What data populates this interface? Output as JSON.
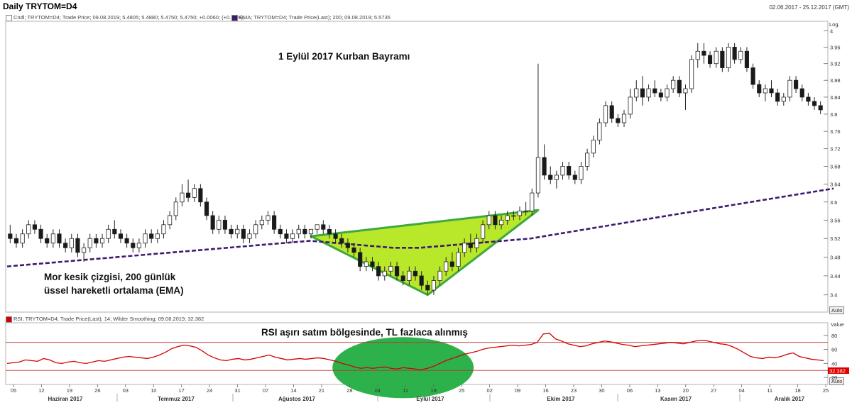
{
  "header": {
    "title": "Daily TRYTOM=D4",
    "date_range": "02.06.2017 - 25.12.2017 (GMT)",
    "legend_main": "Cndl; TRYTOM=D4; Trade Price; 09.08.2019; 5.4805; 5.4880; 5.4750; 5.4750; +0.0060; (+0.11%);",
    "legend_ema": "EMA; TRYTOM=D4; Trade Price(Last); 200; 09.08.2019; 5.5735",
    "legend_rsi": "RSI; TRYTOM=D4; Trade Price(Last); 14; Wilder Smoothing; 09.08.2019; 32.382"
  },
  "axis": {
    "price_scale_label": "Log.",
    "rsi_scale_label": "Value",
    "auto_label": "Auto",
    "rsi_last_value": "32.382"
  },
  "annotations": {
    "kurban": "1 Eylül 2017 Kurban Bayramı",
    "ema_line1": "Mor kesik çizgisi, 200 günlük",
    "ema_line2": "üssel hareketli ortalama (EMA)",
    "rsi_note": "RSI aşırı satım bölgesinde, TL fazlaca alınmış"
  },
  "colors": {
    "ema": "#3d1b6e",
    "triangle_fill": "#b5e61d",
    "triangle_stroke": "#3fa83f",
    "ellipse_fill": "#2db14a",
    "rsi_line": "#d40000",
    "rsi_band": "#c03030"
  },
  "chart_data": [
    {
      "type": "candlestick",
      "scale": "log",
      "ylim": [
        3.37,
        4.02
      ],
      "y_ticks": [
        3.4,
        3.44,
        3.48,
        3.52,
        3.56,
        3.6,
        3.64,
        3.68,
        3.72,
        3.76,
        3.8,
        3.84,
        3.88,
        3.92,
        3.96,
        4
      ],
      "x_ticks": [
        "05",
        "12",
        "19",
        "26",
        "03",
        "10",
        "17",
        "24",
        "31",
        "07",
        "14",
        "21",
        "28",
        "04",
        "11",
        "18",
        "25",
        "02",
        "09",
        "16",
        "23",
        "30",
        "06",
        "13",
        "20",
        "27",
        "04",
        "11",
        "18",
        "25"
      ],
      "x_months": [
        "Haziran 2017",
        "Temmuz 2017",
        "Ağustos 2017",
        "Eylül 2017",
        "Ekim 2017",
        "Kasım 2017",
        "Aralık 2017"
      ],
      "candles": [
        [
          3.53,
          3.55,
          3.51,
          3.52
        ],
        [
          3.52,
          3.53,
          3.5,
          3.51
        ],
        [
          3.51,
          3.54,
          3.5,
          3.53
        ],
        [
          3.53,
          3.56,
          3.52,
          3.55
        ],
        [
          3.55,
          3.56,
          3.53,
          3.54
        ],
        [
          3.54,
          3.55,
          3.51,
          3.52
        ],
        [
          3.52,
          3.53,
          3.5,
          3.51
        ],
        [
          3.51,
          3.54,
          3.5,
          3.53
        ],
        [
          3.53,
          3.54,
          3.5,
          3.51
        ],
        [
          3.51,
          3.52,
          3.49,
          3.5
        ],
        [
          3.5,
          3.53,
          3.49,
          3.52
        ],
        [
          3.52,
          3.53,
          3.48,
          3.49
        ],
        [
          3.49,
          3.51,
          3.47,
          3.5
        ],
        [
          3.5,
          3.53,
          3.49,
          3.52
        ],
        [
          3.52,
          3.53,
          3.5,
          3.51
        ],
        [
          3.51,
          3.53,
          3.5,
          3.52
        ],
        [
          3.52,
          3.55,
          3.51,
          3.54
        ],
        [
          3.54,
          3.56,
          3.52,
          3.53
        ],
        [
          3.53,
          3.54,
          3.51,
          3.52
        ],
        [
          3.52,
          3.53,
          3.5,
          3.51
        ],
        [
          3.51,
          3.52,
          3.49,
          3.5
        ],
        [
          3.5,
          3.52,
          3.49,
          3.51
        ],
        [
          3.51,
          3.54,
          3.5,
          3.53
        ],
        [
          3.53,
          3.54,
          3.51,
          3.52
        ],
        [
          3.52,
          3.54,
          3.51,
          3.53
        ],
        [
          3.53,
          3.56,
          3.52,
          3.55
        ],
        [
          3.55,
          3.58,
          3.54,
          3.57
        ],
        [
          3.57,
          3.61,
          3.56,
          3.6
        ],
        [
          3.6,
          3.64,
          3.59,
          3.62
        ],
        [
          3.62,
          3.65,
          3.6,
          3.61
        ],
        [
          3.61,
          3.64,
          3.6,
          3.63
        ],
        [
          3.63,
          3.64,
          3.59,
          3.6
        ],
        [
          3.6,
          3.61,
          3.56,
          3.57
        ],
        [
          3.57,
          3.58,
          3.53,
          3.54
        ],
        [
          3.54,
          3.57,
          3.53,
          3.56
        ],
        [
          3.56,
          3.57,
          3.53,
          3.54
        ],
        [
          3.54,
          3.55,
          3.52,
          3.53
        ],
        [
          3.53,
          3.55,
          3.52,
          3.54
        ],
        [
          3.54,
          3.55,
          3.51,
          3.52
        ],
        [
          3.52,
          3.54,
          3.51,
          3.53
        ],
        [
          3.53,
          3.56,
          3.52,
          3.55
        ],
        [
          3.55,
          3.57,
          3.54,
          3.56
        ],
        [
          3.56,
          3.58,
          3.55,
          3.57
        ],
        [
          3.57,
          3.58,
          3.53,
          3.54
        ],
        [
          3.54,
          3.55,
          3.52,
          3.53
        ],
        [
          3.53,
          3.54,
          3.51,
          3.52
        ],
        [
          3.52,
          3.54,
          3.51,
          3.53
        ],
        [
          3.53,
          3.55,
          3.52,
          3.54
        ],
        [
          3.54,
          3.55,
          3.52,
          3.53
        ],
        [
          3.53,
          3.54,
          3.52,
          3.54
        ],
        [
          3.54,
          3.55,
          3.53,
          3.55
        ],
        [
          3.55,
          3.56,
          3.53,
          3.54
        ],
        [
          3.54,
          3.55,
          3.52,
          3.53
        ],
        [
          3.53,
          3.54,
          3.51,
          3.52
        ],
        [
          3.52,
          3.53,
          3.5,
          3.51
        ],
        [
          3.51,
          3.52,
          3.49,
          3.5
        ],
        [
          3.5,
          3.51,
          3.48,
          3.49
        ],
        [
          3.49,
          3.5,
          3.45,
          3.46
        ],
        [
          3.46,
          3.48,
          3.45,
          3.47
        ],
        [
          3.47,
          3.48,
          3.45,
          3.46
        ],
        [
          3.46,
          3.47,
          3.43,
          3.44
        ],
        [
          3.44,
          3.46,
          3.43,
          3.45
        ],
        [
          3.45,
          3.47,
          3.44,
          3.46
        ],
        [
          3.46,
          3.47,
          3.43,
          3.44
        ],
        [
          3.44,
          3.45,
          3.42,
          3.43
        ],
        [
          3.43,
          3.46,
          3.42,
          3.45
        ],
        [
          3.45,
          3.46,
          3.43,
          3.44
        ],
        [
          3.44,
          3.45,
          3.41,
          3.42
        ],
        [
          3.42,
          3.43,
          3.4,
          3.41
        ],
        [
          3.41,
          3.44,
          3.4,
          3.43
        ],
        [
          3.43,
          3.46,
          3.42,
          3.45
        ],
        [
          3.45,
          3.48,
          3.44,
          3.47
        ],
        [
          3.47,
          3.49,
          3.45,
          3.46
        ],
        [
          3.46,
          3.5,
          3.45,
          3.49
        ],
        [
          3.49,
          3.52,
          3.48,
          3.51
        ],
        [
          3.51,
          3.53,
          3.49,
          3.5
        ],
        [
          3.5,
          3.53,
          3.49,
          3.52
        ],
        [
          3.52,
          3.56,
          3.51,
          3.55
        ],
        [
          3.55,
          3.58,
          3.54,
          3.57
        ],
        [
          3.57,
          3.58,
          3.54,
          3.55
        ],
        [
          3.55,
          3.57,
          3.54,
          3.56
        ],
        [
          3.56,
          3.58,
          3.55,
          3.57
        ],
        [
          3.57,
          3.58,
          3.56,
          3.57
        ],
        [
          3.57,
          3.59,
          3.56,
          3.58
        ],
        [
          3.58,
          3.6,
          3.57,
          3.58
        ],
        [
          3.58,
          3.63,
          3.57,
          3.62
        ],
        [
          3.62,
          3.92,
          3.61,
          3.7
        ],
        [
          3.7,
          3.73,
          3.65,
          3.66
        ],
        [
          3.66,
          3.68,
          3.64,
          3.65
        ],
        [
          3.65,
          3.67,
          3.63,
          3.66
        ],
        [
          3.66,
          3.69,
          3.65,
          3.68
        ],
        [
          3.68,
          3.69,
          3.65,
          3.66
        ],
        [
          3.66,
          3.67,
          3.64,
          3.65
        ],
        [
          3.65,
          3.69,
          3.64,
          3.68
        ],
        [
          3.68,
          3.72,
          3.67,
          3.71
        ],
        [
          3.71,
          3.75,
          3.7,
          3.74
        ],
        [
          3.74,
          3.79,
          3.73,
          3.78
        ],
        [
          3.78,
          3.83,
          3.77,
          3.82
        ],
        [
          3.82,
          3.83,
          3.78,
          3.79
        ],
        [
          3.79,
          3.8,
          3.77,
          3.78
        ],
        [
          3.78,
          3.81,
          3.77,
          3.8
        ],
        [
          3.8,
          3.86,
          3.79,
          3.84
        ],
        [
          3.84,
          3.88,
          3.83,
          3.86
        ],
        [
          3.86,
          3.89,
          3.82,
          3.84
        ],
        [
          3.84,
          3.87,
          3.83,
          3.86
        ],
        [
          3.86,
          3.88,
          3.84,
          3.85
        ],
        [
          3.85,
          3.86,
          3.83,
          3.84
        ],
        [
          3.84,
          3.87,
          3.83,
          3.86
        ],
        [
          3.86,
          3.89,
          3.85,
          3.88
        ],
        [
          3.88,
          3.89,
          3.84,
          3.85
        ],
        [
          3.85,
          3.87,
          3.81,
          3.86
        ],
        [
          3.86,
          3.94,
          3.85,
          3.93
        ],
        [
          3.93,
          3.97,
          3.91,
          3.95
        ],
        [
          3.95,
          3.97,
          3.92,
          3.94
        ],
        [
          3.94,
          3.95,
          3.91,
          3.92
        ],
        [
          3.92,
          3.96,
          3.91,
          3.95
        ],
        [
          3.95,
          3.96,
          3.9,
          3.91
        ],
        [
          3.91,
          3.97,
          3.9,
          3.96
        ],
        [
          3.96,
          3.97,
          3.92,
          3.93
        ],
        [
          3.93,
          3.96,
          3.92,
          3.95
        ],
        [
          3.95,
          3.96,
          3.9,
          3.91
        ],
        [
          3.91,
          3.92,
          3.86,
          3.87
        ],
        [
          3.87,
          3.88,
          3.84,
          3.85
        ],
        [
          3.85,
          3.87,
          3.83,
          3.86
        ],
        [
          3.86,
          3.88,
          3.84,
          3.85
        ],
        [
          3.85,
          3.86,
          3.82,
          3.83
        ],
        [
          3.83,
          3.85,
          3.82,
          3.84
        ],
        [
          3.84,
          3.89,
          3.83,
          3.88
        ],
        [
          3.88,
          3.89,
          3.85,
          3.86
        ],
        [
          3.86,
          3.87,
          3.83,
          3.84
        ],
        [
          3.84,
          3.85,
          3.82,
          3.83
        ],
        [
          3.83,
          3.84,
          3.81,
          3.82
        ],
        [
          3.82,
          3.83,
          3.8,
          3.81
        ]
      ],
      "ema_200": [
        3.46,
        3.465,
        3.47,
        3.475,
        3.48,
        3.485,
        3.49,
        3.495,
        3.5,
        3.505,
        3.51,
        3.515,
        3.51,
        3.505,
        3.5,
        3.5,
        3.505,
        3.51,
        3.515,
        3.52,
        3.53,
        3.54,
        3.55,
        3.56,
        3.57,
        3.58,
        3.59,
        3.6,
        3.61,
        3.62,
        3.63
      ]
    },
    {
      "type": "line",
      "name": "RSI",
      "ylim": [
        10,
        95
      ],
      "y_ticks": [
        20,
        40,
        60,
        80
      ],
      "bands": [
        30,
        70
      ],
      "values": [
        40,
        41,
        42,
        45,
        44,
        43,
        47,
        45,
        41,
        40,
        42,
        43,
        41,
        40,
        42,
        44,
        43,
        45,
        47,
        49,
        50,
        49,
        48,
        47,
        49,
        52,
        56,
        61,
        64,
        66,
        65,
        63,
        58,
        52,
        48,
        45,
        44,
        46,
        47,
        45,
        46,
        48,
        50,
        52,
        49,
        47,
        45,
        46,
        47,
        46,
        47,
        48,
        47,
        45,
        43,
        40,
        38,
        35,
        33,
        34,
        33,
        34,
        35,
        33,
        32,
        34,
        33,
        32,
        31,
        33,
        36,
        40,
        44,
        47,
        50,
        53,
        55,
        57,
        60,
        62,
        63,
        64,
        65,
        66,
        65,
        66,
        67,
        70,
        82,
        83,
        75,
        72,
        68,
        66,
        64,
        65,
        68,
        70,
        72,
        71,
        69,
        67,
        66,
        64,
        65,
        66,
        67,
        68,
        69,
        70,
        69,
        68,
        70,
        72,
        73,
        72,
        70,
        68,
        67,
        64,
        60,
        55,
        50,
        48,
        47,
        49,
        48,
        50,
        53,
        55,
        50,
        48,
        46,
        45,
        44
      ]
    }
  ]
}
